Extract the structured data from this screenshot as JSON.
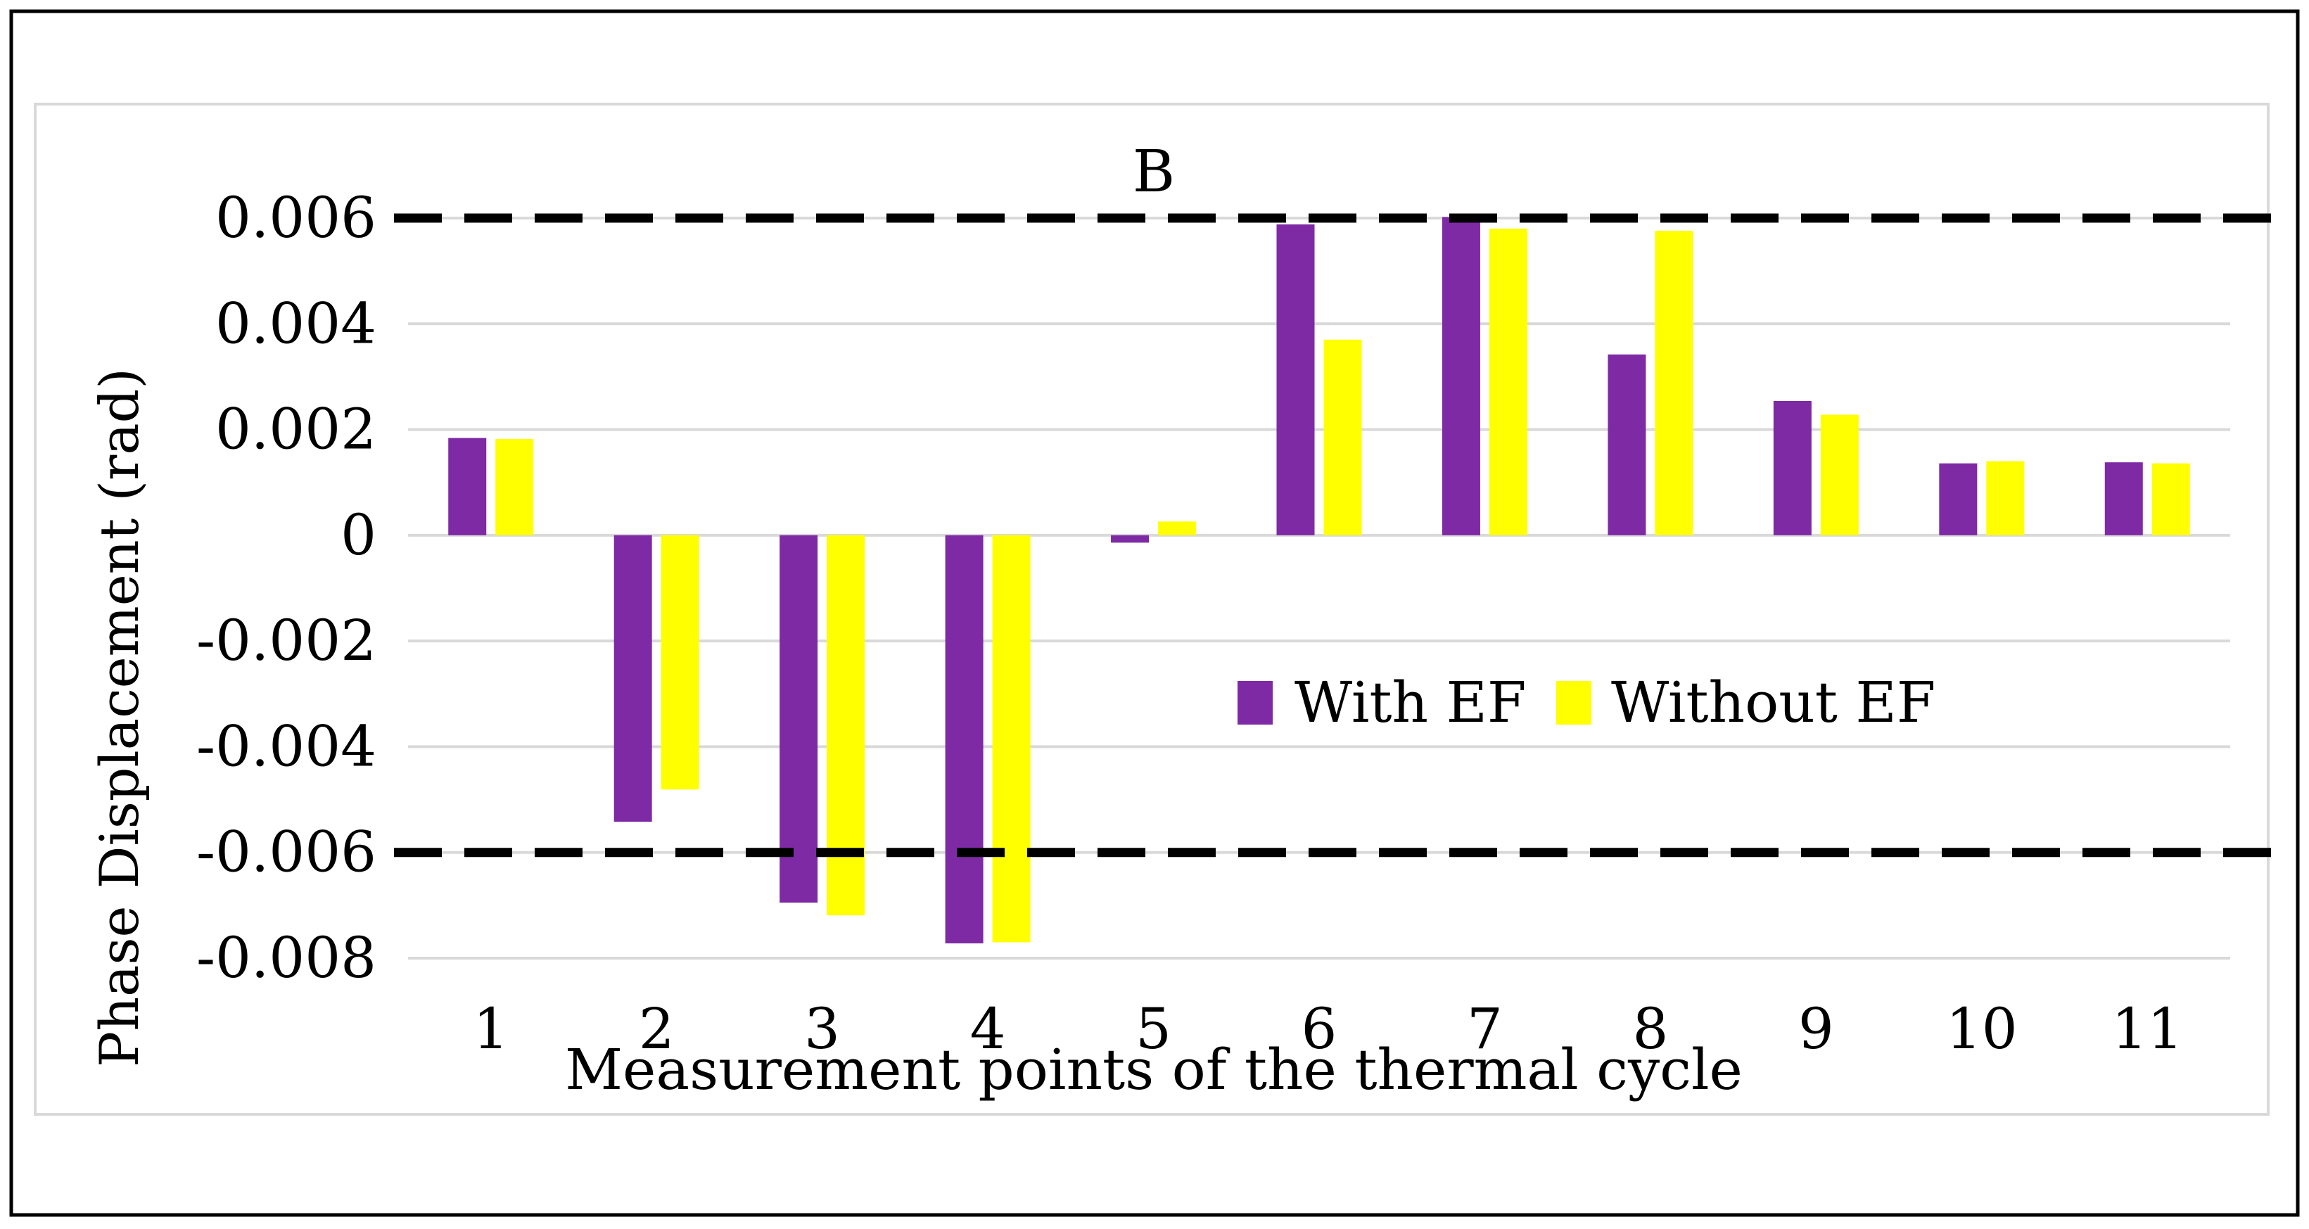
{
  "chart_data": {
    "type": "bar",
    "title": "B",
    "xlabel": "Measurement points of the thermal cycle",
    "ylabel": "Phase Displacement (rad)",
    "categories": [
      "1",
      "2",
      "3",
      "4",
      "5",
      "6",
      "7",
      "8",
      "9",
      "10",
      "11"
    ],
    "series": [
      {
        "name": "With EF",
        "color": "#7F2AA5",
        "values": [
          0.00184,
          -0.00542,
          -0.00695,
          -0.00772,
          -0.00014,
          0.00588,
          0.00602,
          0.00342,
          0.00254,
          0.00136,
          0.00138
        ]
      },
      {
        "name": "Without EF",
        "color": "#FFFF00",
        "values": [
          0.00182,
          -0.00481,
          -0.00719,
          -0.0077,
          0.00026,
          0.0037,
          0.0058,
          0.00576,
          0.00228,
          0.0014,
          0.00136
        ]
      }
    ],
    "ylim": [
      -0.008,
      0.006
    ],
    "yticks": [
      "0.006",
      "0.004",
      "0.002",
      "0",
      "-0.002",
      "-0.004",
      "-0.006",
      "-0.008"
    ],
    "ytick_values": [
      0.006,
      0.004,
      0.002,
      0,
      -0.002,
      -0.004,
      -0.006,
      -0.008
    ],
    "reference_lines": [
      0.006,
      -0.006
    ],
    "grid": true,
    "legend_position": "right-center"
  }
}
